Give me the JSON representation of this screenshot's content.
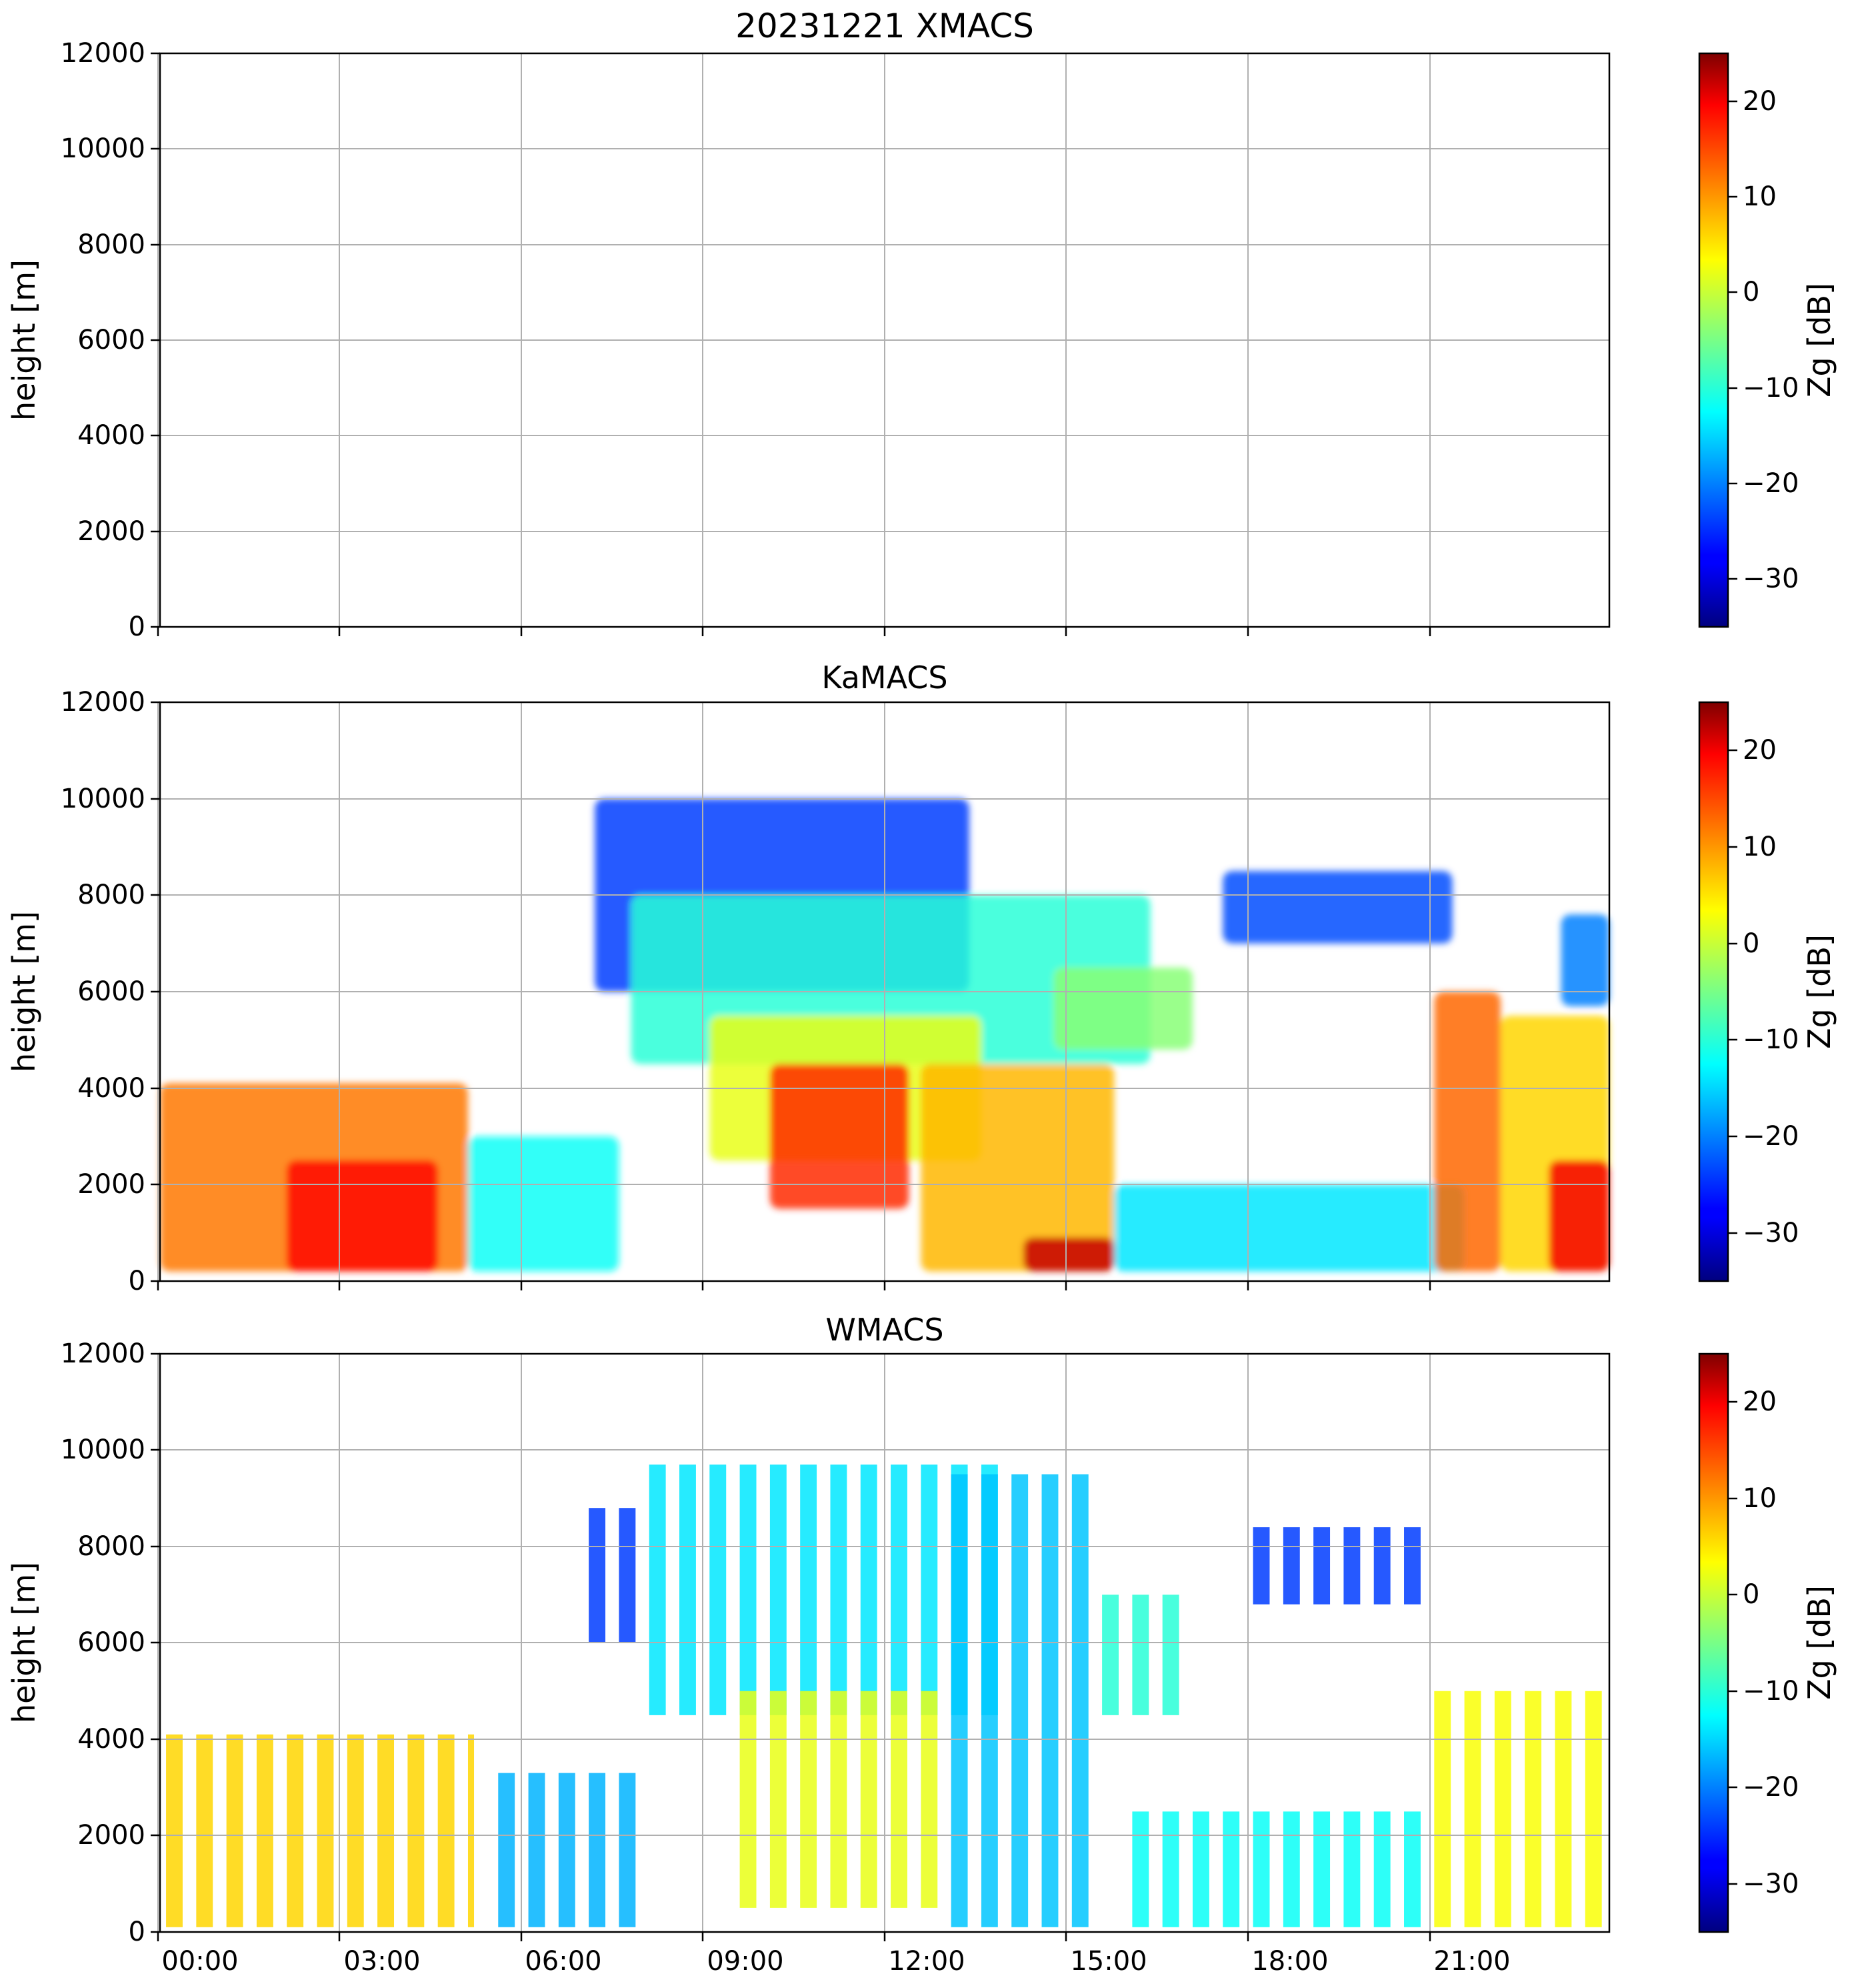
{
  "chart_data": [
    {
      "type": "heatmap",
      "title": "20231221 XMACS",
      "ylabel": "height [m]",
      "xlabel": "",
      "ylim": [
        0,
        12000
      ],
      "y_ticks": [
        "0",
        "2000",
        "4000",
        "6000",
        "8000",
        "10000",
        "12000"
      ],
      "x_range_hours": [
        -0.6,
        23.4
      ],
      "x_ticks": [
        "00:00",
        "03:00",
        "06:00",
        "09:00",
        "12:00",
        "15:00",
        "18:00",
        "21:00"
      ],
      "grid": true,
      "colorbar": {
        "label": "Zg [dB]",
        "range": [
          -35,
          25
        ],
        "ticks": [
          "−30",
          "−20",
          "−10",
          "0",
          "10",
          "20"
        ]
      },
      "echo_regions": []
    },
    {
      "type": "heatmap",
      "title": "KaMACS",
      "ylabel": "height [m]",
      "xlabel": "",
      "ylim": [
        0,
        12000
      ],
      "y_ticks": [
        "0",
        "2000",
        "4000",
        "6000",
        "8000",
        "10000",
        "12000"
      ],
      "x_range_hours": [
        -0.6,
        23.4
      ],
      "x_ticks": [
        "00:00",
        "03:00",
        "06:00",
        "09:00",
        "12:00",
        "15:00",
        "18:00",
        "21:00"
      ],
      "grid": true,
      "colorbar": {
        "label": "Zg [dB]",
        "range": [
          -35,
          25
        ],
        "ticks": [
          "−30",
          "−20",
          "−10",
          "0",
          "10",
          "20"
        ]
      },
      "echo_regions": [
        {
          "t0": -0.6,
          "t1": 4.5,
          "h0": 200,
          "h1": 4100,
          "z": 12
        },
        {
          "t0": 1.5,
          "t1": 4.0,
          "h0": 200,
          "h1": 2500,
          "z": 19
        },
        {
          "t0": 4.5,
          "t1": 7.0,
          "h0": 200,
          "h1": 3000,
          "z": -12
        },
        {
          "t0": 6.6,
          "t1": 12.8,
          "h0": 6000,
          "h1": 10000,
          "z": -24
        },
        {
          "t0": 7.2,
          "t1": 15.8,
          "h0": 4500,
          "h1": 8000,
          "z": -10
        },
        {
          "t0": 8.5,
          "t1": 13.0,
          "h0": 2500,
          "h1": 5500,
          "z": 2
        },
        {
          "t0": 9.5,
          "t1": 11.8,
          "h0": 1500,
          "h1": 4500,
          "z": 17
        },
        {
          "t0": 12.0,
          "t1": 15.2,
          "h0": 200,
          "h1": 4500,
          "z": 8
        },
        {
          "t0": 13.7,
          "t1": 15.2,
          "h0": 200,
          "h1": 900,
          "z": 22
        },
        {
          "t0": 14.2,
          "t1": 16.5,
          "h0": 4800,
          "h1": 6500,
          "z": -4
        },
        {
          "t0": 15.2,
          "t1": 21.0,
          "h0": 200,
          "h1": 2000,
          "z": -14
        },
        {
          "t0": 17.0,
          "t1": 20.8,
          "h0": 7000,
          "h1": 8500,
          "z": -23
        },
        {
          "t0": 20.5,
          "t1": 21.6,
          "h0": 200,
          "h1": 6000,
          "z": 13
        },
        {
          "t0": 21.6,
          "t1": 23.4,
          "h0": 200,
          "h1": 5500,
          "z": 6
        },
        {
          "t0": 22.4,
          "t1": 23.4,
          "h0": 200,
          "h1": 2500,
          "z": 20
        },
        {
          "t0": 22.6,
          "t1": 23.4,
          "h0": 5700,
          "h1": 7600,
          "z": -20
        }
      ]
    },
    {
      "type": "heatmap",
      "title": "WMACS",
      "ylabel": "height [m]",
      "xlabel": "",
      "ylim": [
        0,
        12000
      ],
      "y_ticks": [
        "0",
        "2000",
        "4000",
        "6000",
        "8000",
        "10000",
        "12000"
      ],
      "x_range_hours": [
        -0.6,
        23.4
      ],
      "x_ticks": [
        "00:00",
        "03:00",
        "06:00",
        "09:00",
        "12:00",
        "15:00",
        "18:00",
        "21:00"
      ],
      "grid": true,
      "colorbar": {
        "label": "Zg [dB]",
        "range": [
          -35,
          25
        ],
        "ticks": [
          "−30",
          "−20",
          "−10",
          "0",
          "10",
          "20"
        ]
      },
      "echo_regions": [
        {
          "t0": -0.6,
          "t1": 4.6,
          "h0": 100,
          "h1": 4100,
          "z": 6
        },
        {
          "t0": 4.6,
          "t1": 7.5,
          "h0": 100,
          "h1": 3300,
          "z": -17
        },
        {
          "t0": 6.2,
          "t1": 7.5,
          "h0": 6000,
          "h1": 8800,
          "z": -24
        },
        {
          "t0": 7.5,
          "t1": 13.3,
          "h0": 4500,
          "h1": 9700,
          "z": -14
        },
        {
          "t0": 8.8,
          "t1": 12.5,
          "h0": 500,
          "h1": 5000,
          "z": 2
        },
        {
          "t0": 12.5,
          "t1": 14.8,
          "h0": 100,
          "h1": 9500,
          "z": -16
        },
        {
          "t0": 14.8,
          "t1": 16.3,
          "h0": 4500,
          "h1": 7000,
          "z": -10
        },
        {
          "t0": 15.5,
          "t1": 20.5,
          "h0": 100,
          "h1": 2500,
          "z": -12
        },
        {
          "t0": 17.5,
          "t1": 20.5,
          "h0": 6800,
          "h1": 8400,
          "z": -24
        },
        {
          "t0": 20.5,
          "t1": 23.4,
          "h0": 100,
          "h1": 5000,
          "z": 3
        }
      ],
      "sampling": {
        "period_h": 0.5,
        "on_fraction": 0.55
      }
    }
  ]
}
